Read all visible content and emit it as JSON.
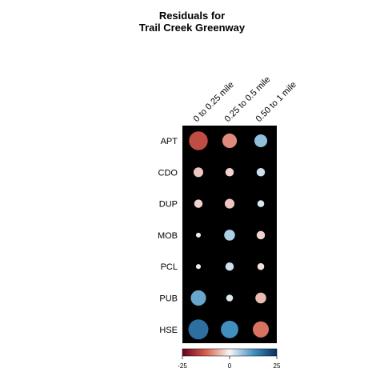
{
  "chart_data": {
    "type": "heatmap",
    "title_lines": [
      "Residuals for",
      "Trail Creek Greenway"
    ],
    "columns": [
      "0 to 0.25 mile",
      "0.25 to 0.5 mile",
      "0.50 to 1 mile"
    ],
    "rows": [
      "APT",
      "CDO",
      "DUP",
      "MOB",
      "PCL",
      "PUB",
      "HSE"
    ],
    "values": [
      [
        -15,
        -9,
        7
      ],
      [
        -4,
        -3,
        3
      ],
      [
        -3,
        -4,
        2
      ],
      [
        -1,
        5,
        -3
      ],
      [
        -1,
        3,
        -2
      ],
      [
        10,
        2,
        -5
      ],
      [
        17,
        13,
        -11
      ]
    ],
    "value_range": [
      -25,
      25
    ],
    "colorbar_ticks": [
      "-25",
      "0",
      "25"
    ],
    "colors": {
      "background": "#000000",
      "negative_end": "#67001f",
      "negative_mid": "#d6604d",
      "neutral": "#f7f7f7",
      "positive_mid": "#4393c3",
      "positive_end": "#053061"
    }
  }
}
